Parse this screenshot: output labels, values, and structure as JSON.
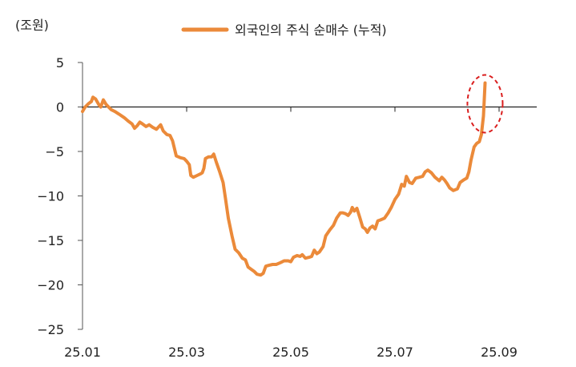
{
  "chart_data": {
    "type": "line",
    "unit_label": "(조원)",
    "title": "",
    "xlabel": "",
    "ylabel": "",
    "ylim": [
      -25,
      5
    ],
    "yticks": [
      5,
      0,
      -5,
      -10,
      -15,
      -20,
      -25
    ],
    "ytick_labels": [
      "5",
      "0",
      "−5",
      "−10",
      "−15",
      "−20",
      "−25"
    ],
    "xticks": [
      "25.01",
      "25.03",
      "25.05",
      "25.07",
      "25.09"
    ],
    "grid": false,
    "legend_position": "top",
    "series": [
      {
        "name": "외국인의 주식 순매수 (누적)",
        "color": "#EB8A3A",
        "points": [
          [
            0.0,
            -0.5
          ],
          [
            0.05,
            0.0
          ],
          [
            0.12,
            0.4
          ],
          [
            0.17,
            0.6
          ],
          [
            0.2,
            1.1
          ],
          [
            0.25,
            0.9
          ],
          [
            0.28,
            0.6
          ],
          [
            0.32,
            0.2
          ],
          [
            0.35,
            0.0
          ],
          [
            0.4,
            0.8
          ],
          [
            0.45,
            0.3
          ],
          [
            0.5,
            0.0
          ],
          [
            0.55,
            -0.3
          ],
          [
            0.62,
            -0.5
          ],
          [
            0.7,
            -0.8
          ],
          [
            0.8,
            -1.2
          ],
          [
            0.88,
            -1.6
          ],
          [
            0.95,
            -1.9
          ],
          [
            1.0,
            -2.4
          ],
          [
            1.05,
            -2.1
          ],
          [
            1.1,
            -1.7
          ],
          [
            1.15,
            -1.9
          ],
          [
            1.22,
            -2.2
          ],
          [
            1.28,
            -2.0
          ],
          [
            1.35,
            -2.3
          ],
          [
            1.42,
            -2.5
          ],
          [
            1.5,
            -2.0
          ],
          [
            1.55,
            -2.7
          ],
          [
            1.62,
            -3.1
          ],
          [
            1.68,
            -3.2
          ],
          [
            1.73,
            -3.8
          ],
          [
            1.8,
            -5.5
          ],
          [
            1.88,
            -5.7
          ],
          [
            1.95,
            -5.8
          ],
          [
            2.0,
            -6.1
          ],
          [
            2.05,
            -6.5
          ],
          [
            2.08,
            -7.7
          ],
          [
            2.13,
            -7.9
          ],
          [
            2.2,
            -7.7
          ],
          [
            2.27,
            -7.5
          ],
          [
            2.3,
            -7.4
          ],
          [
            2.33,
            -6.9
          ],
          [
            2.36,
            -5.8
          ],
          [
            2.42,
            -5.6
          ],
          [
            2.48,
            -5.6
          ],
          [
            2.52,
            -5.3
          ],
          [
            2.57,
            -6.2
          ],
          [
            2.63,
            -7.2
          ],
          [
            2.7,
            -8.5
          ],
          [
            2.75,
            -10.5
          ],
          [
            2.8,
            -12.5
          ],
          [
            2.87,
            -14.5
          ],
          [
            2.93,
            -16.0
          ],
          [
            3.0,
            -16.4
          ],
          [
            3.07,
            -17.0
          ],
          [
            3.13,
            -17.2
          ],
          [
            3.18,
            -18.0
          ],
          [
            3.25,
            -18.3
          ],
          [
            3.3,
            -18.5
          ],
          [
            3.35,
            -18.8
          ],
          [
            3.42,
            -18.9
          ],
          [
            3.47,
            -18.7
          ],
          [
            3.52,
            -17.9
          ],
          [
            3.58,
            -17.8
          ],
          [
            3.65,
            -17.7
          ],
          [
            3.72,
            -17.7
          ],
          [
            3.8,
            -17.5
          ],
          [
            3.87,
            -17.3
          ],
          [
            3.95,
            -17.3
          ],
          [
            4.0,
            -17.4
          ],
          [
            4.05,
            -16.9
          ],
          [
            4.12,
            -16.7
          ],
          [
            4.18,
            -16.8
          ],
          [
            4.22,
            -16.6
          ],
          [
            4.28,
            -17.0
          ],
          [
            4.35,
            -16.9
          ],
          [
            4.4,
            -16.8
          ],
          [
            4.45,
            -16.1
          ],
          [
            4.5,
            -16.5
          ],
          [
            4.55,
            -16.3
          ],
          [
            4.62,
            -15.7
          ],
          [
            4.67,
            -14.5
          ],
          [
            4.75,
            -13.8
          ],
          [
            4.82,
            -13.3
          ],
          [
            4.88,
            -12.5
          ],
          [
            4.95,
            -11.9
          ],
          [
            5.0,
            -11.9
          ],
          [
            5.05,
            -12.0
          ],
          [
            5.1,
            -12.2
          ],
          [
            5.15,
            -11.8
          ],
          [
            5.18,
            -11.3
          ],
          [
            5.22,
            -11.7
          ],
          [
            5.27,
            -11.4
          ],
          [
            5.33,
            -12.5
          ],
          [
            5.38,
            -13.5
          ],
          [
            5.43,
            -13.7
          ],
          [
            5.47,
            -14.1
          ],
          [
            5.52,
            -13.6
          ],
          [
            5.57,
            -13.4
          ],
          [
            5.62,
            -13.7
          ],
          [
            5.67,
            -12.8
          ],
          [
            5.72,
            -12.7
          ],
          [
            5.8,
            -12.5
          ],
          [
            5.87,
            -11.9
          ],
          [
            5.93,
            -11.3
          ],
          [
            6.0,
            -10.4
          ],
          [
            6.07,
            -9.8
          ],
          [
            6.13,
            -8.7
          ],
          [
            6.18,
            -8.9
          ],
          [
            6.22,
            -7.8
          ],
          [
            6.28,
            -8.5
          ],
          [
            6.33,
            -8.6
          ],
          [
            6.4,
            -8.0
          ],
          [
            6.47,
            -7.9
          ],
          [
            6.53,
            -7.8
          ],
          [
            6.58,
            -7.3
          ],
          [
            6.63,
            -7.1
          ],
          [
            6.7,
            -7.4
          ],
          [
            6.77,
            -7.9
          ],
          [
            6.85,
            -8.3
          ],
          [
            6.9,
            -7.9
          ],
          [
            6.95,
            -8.2
          ],
          [
            7.0,
            -8.6
          ],
          [
            7.05,
            -9.1
          ],
          [
            7.12,
            -9.4
          ],
          [
            7.2,
            -9.2
          ],
          [
            7.25,
            -8.5
          ],
          [
            7.32,
            -8.2
          ],
          [
            7.38,
            -8.0
          ],
          [
            7.42,
            -7.3
          ],
          [
            7.46,
            -6.0
          ],
          [
            7.52,
            -4.5
          ],
          [
            7.57,
            -4.1
          ],
          [
            7.62,
            -3.9
          ],
          [
            7.66,
            -3.1
          ],
          [
            7.7,
            -1.0
          ],
          [
            7.73,
            2.7
          ]
        ]
      }
    ],
    "annotation": {
      "type": "dashed-ellipse",
      "color": "#DA1E1E"
    }
  }
}
